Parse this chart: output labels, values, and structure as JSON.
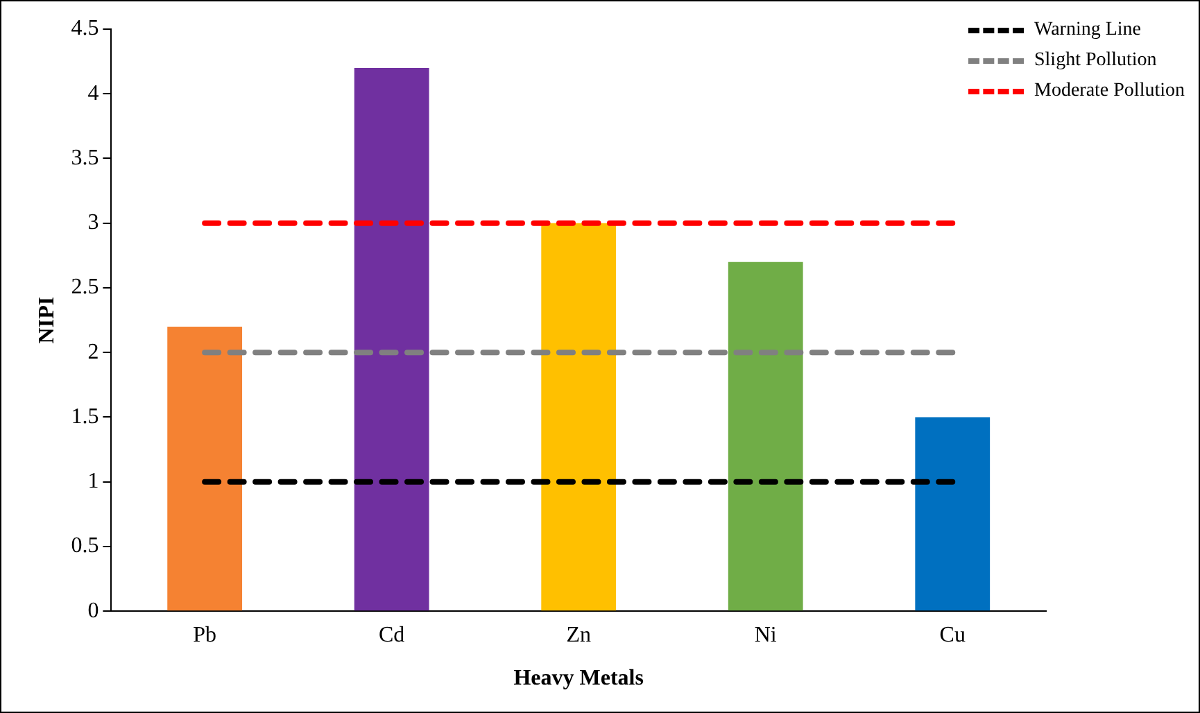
{
  "chart_data": {
    "type": "bar",
    "xlabel": "Heavy Metals",
    "ylabel": "NIPI",
    "categories": [
      "Pb",
      "Cd",
      "Zn",
      "Ni",
      "Cu"
    ],
    "series": [
      {
        "colors": [
          "#f58232",
          "#7030a0",
          "#ffc000",
          "#70ad47",
          "#0070c0"
        ],
        "values": [
          2.2,
          4.2,
          3.0,
          2.7,
          1.5
        ]
      },
      {
        "type": "line",
        "name": "Warning Line",
        "color": "#000000",
        "values": [
          1,
          1,
          1,
          1,
          1
        ]
      },
      {
        "type": "line",
        "name": "Slight Pollution",
        "color": "#808080",
        "values": [
          2,
          2,
          2,
          2,
          2
        ]
      },
      {
        "type": "line",
        "name": "Moderate Pollution",
        "color": "#ff0000",
        "values": [
          3,
          3,
          3,
          3,
          3
        ]
      }
    ],
    "line_style": "dashed",
    "marker": "none",
    "ylim": [
      0,
      4.5
    ],
    "yticks": [
      0,
      0.5,
      1,
      1.5,
      2,
      2.5,
      3,
      3.5,
      4,
      4.5
    ],
    "grid": false,
    "legend": "top right"
  }
}
